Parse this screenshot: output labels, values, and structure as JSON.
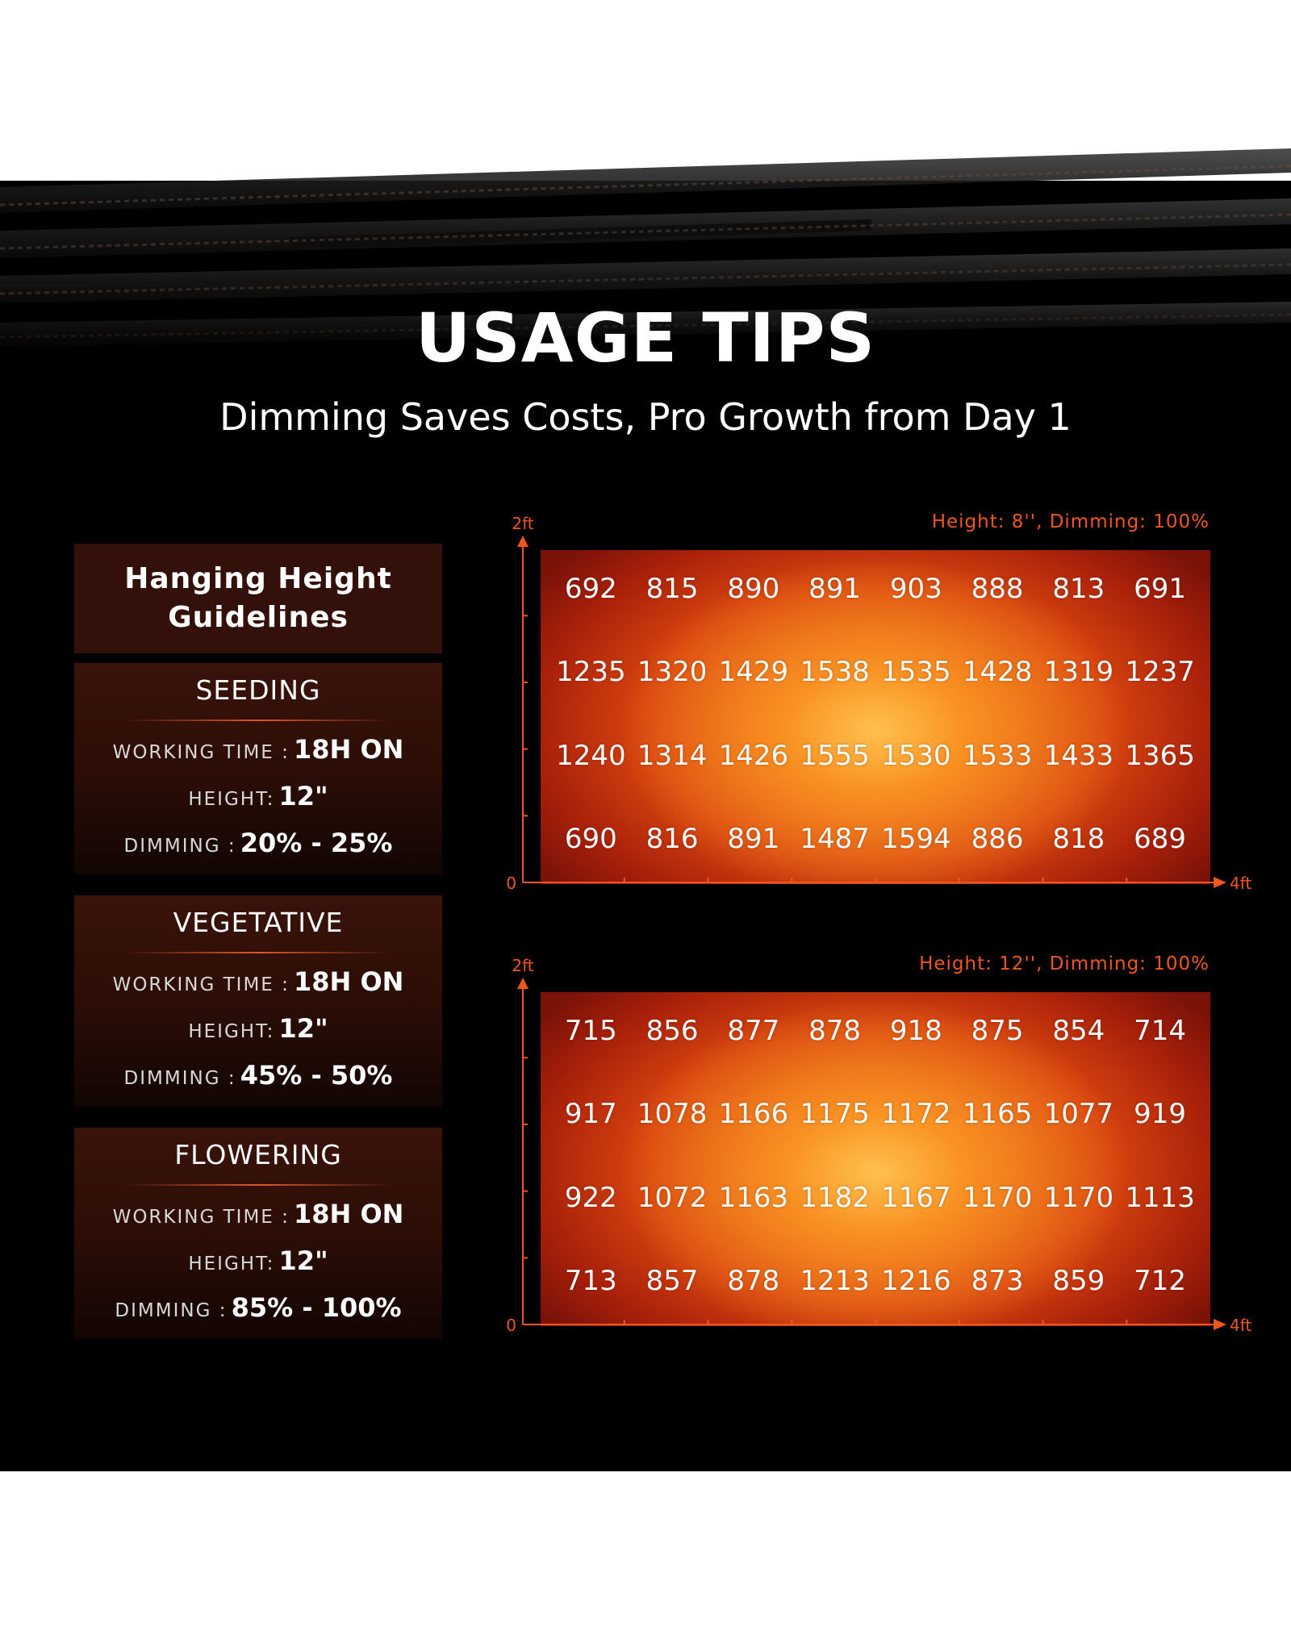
{
  "header": {
    "title": "USAGE TIPS",
    "subtitle": "Dimming Saves Costs, Pro Growth from Day 1"
  },
  "guidelines": {
    "heading_line1": "Hanging Height",
    "heading_line2": "Guidelines",
    "stages": [
      {
        "name": "SEEDING",
        "working_time_label": "WORKING TIME :",
        "working_time": "18H ON",
        "height_label": "HEIGHT:",
        "height": "12\"",
        "dimming_label": "DIMMING :",
        "dimming": "20% - 25%"
      },
      {
        "name": "VEGETATIVE",
        "working_time_label": "WORKING TIME :",
        "working_time": "18H ON",
        "height_label": "HEIGHT:",
        "height": "12\"",
        "dimming_label": "DIMMING :",
        "dimming": "45% - 50%"
      },
      {
        "name": "FLOWERING",
        "working_time_label": "WORKING TIME :",
        "working_time": "18H ON",
        "height_label": "HEIGHT:",
        "height": "12\"",
        "dimming_label": "DIMMING :",
        "dimming": "85% - 100%"
      }
    ]
  },
  "colors": {
    "accent": "#f0561e",
    "background": "#000000"
  },
  "chart_data": [
    {
      "type": "heatmap",
      "title": "Height: 8'', Dimming: 100%",
      "x_axis": {
        "start_label": "0",
        "end_label": "4ft"
      },
      "y_axis": {
        "end_label": "2ft"
      },
      "values": [
        [
          692,
          815,
          890,
          891,
          903,
          888,
          813,
          691
        ],
        [
          1235,
          1320,
          1429,
          1538,
          1535,
          1428,
          1319,
          1237
        ],
        [
          1240,
          1314,
          1426,
          1555,
          1530,
          1533,
          1433,
          1365
        ],
        [
          690,
          816,
          891,
          1487,
          1594,
          886,
          818,
          689
        ]
      ]
    },
    {
      "type": "heatmap",
      "title": "Height: 12'', Dimming: 100%",
      "x_axis": {
        "start_label": "0",
        "end_label": "4ft"
      },
      "y_axis": {
        "end_label": "2ft"
      },
      "values": [
        [
          715,
          856,
          877,
          878,
          918,
          875,
          854,
          714
        ],
        [
          917,
          1078,
          1166,
          1175,
          1172,
          1165,
          1077,
          919
        ],
        [
          922,
          1072,
          1163,
          1182,
          1167,
          1170,
          1170,
          1113
        ],
        [
          713,
          857,
          878,
          1213,
          1216,
          873,
          859,
          712
        ]
      ]
    }
  ]
}
